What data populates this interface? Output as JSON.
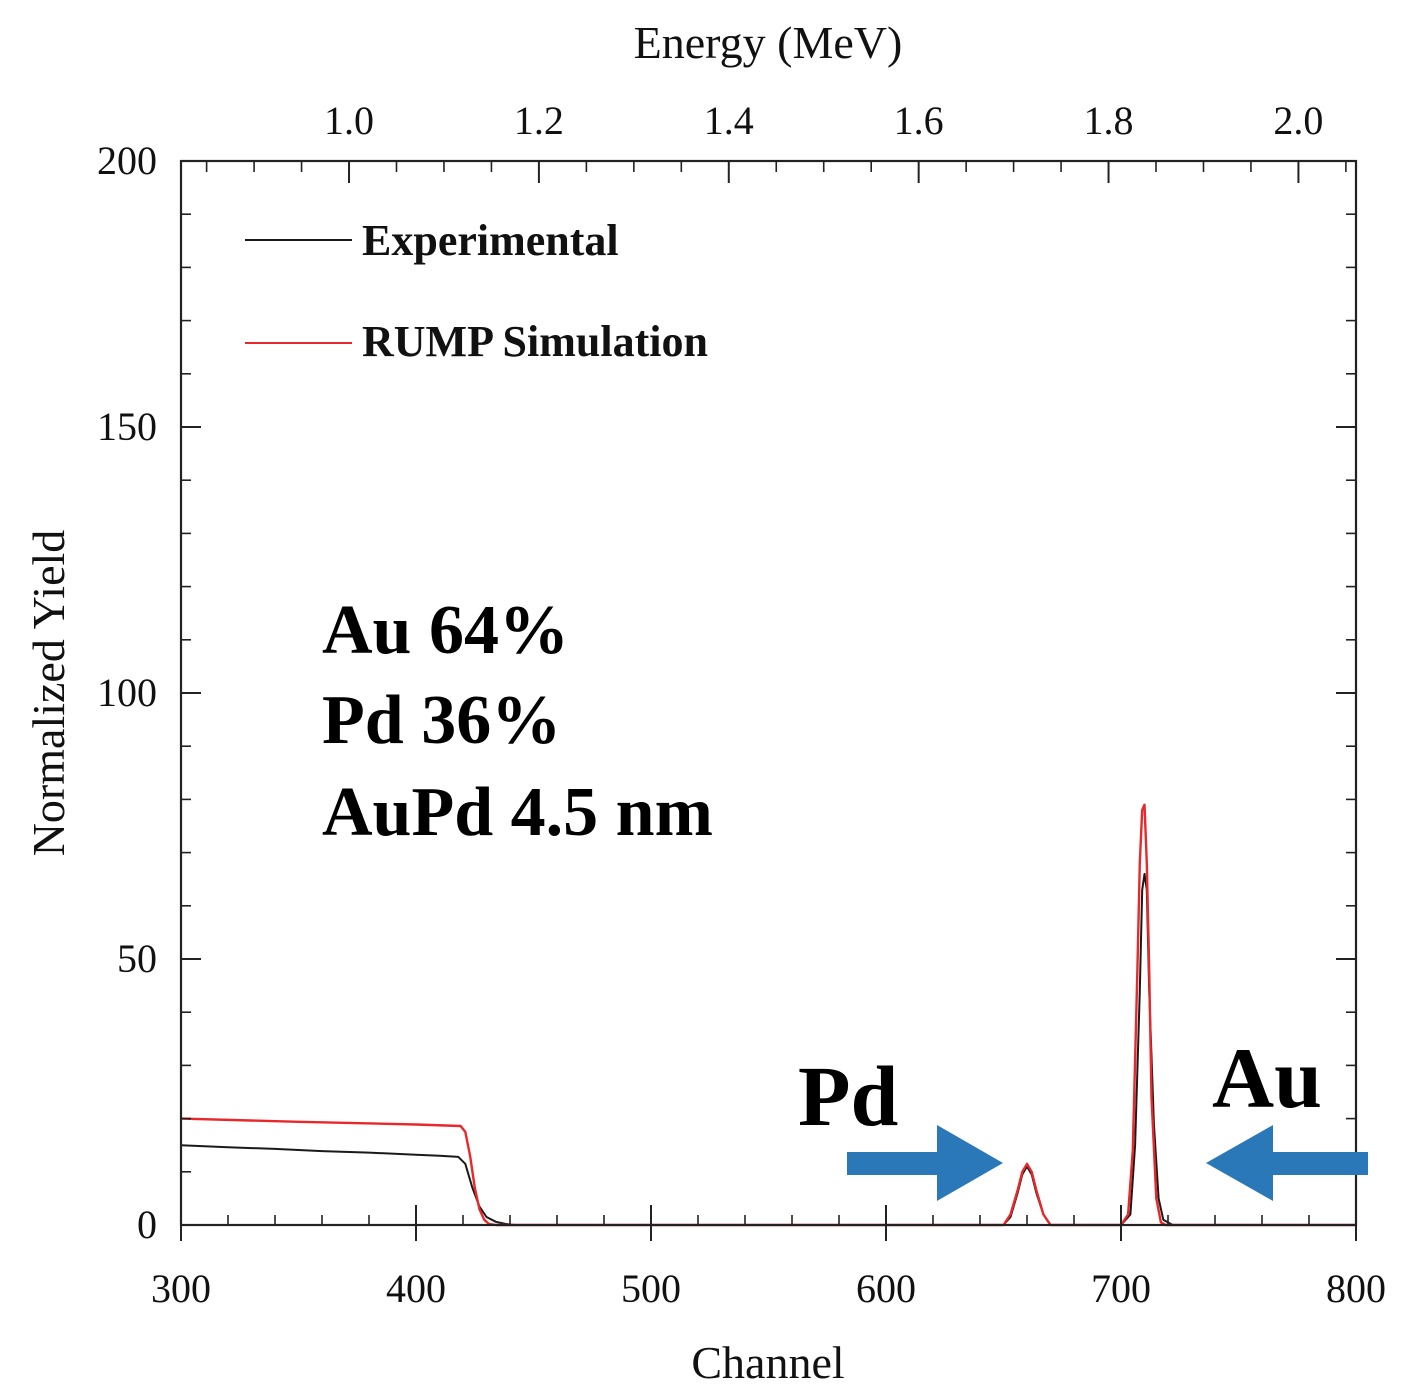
{
  "chart_data": {
    "type": "line",
    "title": "",
    "xlabel": "Channel",
    "ylabel": "Normalized Yield",
    "x2label": "Energy (MeV)",
    "xlim": [
      300,
      800
    ],
    "ylim": [
      0,
      200
    ],
    "x_ticks": [
      300,
      400,
      500,
      600,
      700,
      800
    ],
    "x_tick_labels": [
      "300",
      "400",
      "500",
      "600",
      "700",
      "800"
    ],
    "y_ticks": [
      0,
      50,
      100,
      150,
      200
    ],
    "y_tick_labels": [
      "0",
      "50",
      "100",
      "150",
      "200"
    ],
    "x2_ticks": [
      1.0,
      1.2,
      1.4,
      1.6,
      1.8,
      2.0
    ],
    "x2_tick_labels": [
      "1.0",
      "1.2",
      "1.4",
      "1.6",
      "1.8",
      "2.0"
    ],
    "energy_calibration": {
      "channel_at_1_0_MeV": 371.5,
      "channels_per_MeV": 404
    },
    "legend_position": "top-left",
    "series": [
      {
        "name": "Experimental",
        "color": "#1a1a1a",
        "x": [
          300,
          320,
          340,
          360,
          380,
          400,
          410,
          418,
          421,
          424,
          427,
          430,
          434,
          438,
          442,
          445,
          450,
          500,
          600,
          650,
          653,
          656,
          658,
          660,
          662,
          664,
          667,
          670,
          690,
          700,
          704,
          706,
          708,
          709,
          710,
          711,
          712,
          714,
          716,
          718,
          722,
          730,
          800
        ],
        "values": [
          15,
          14.6,
          14.3,
          13.9,
          13.6,
          13.2,
          13,
          12.8,
          11.5,
          7,
          3.5,
          1.5,
          0.6,
          0.2,
          0,
          0,
          0,
          0,
          0,
          0,
          1.5,
          6,
          9.5,
          11,
          9.5,
          6,
          2,
          0,
          0,
          0,
          2,
          15,
          44,
          63,
          66,
          63,
          44,
          19,
          5,
          1,
          0,
          0,
          0
        ]
      },
      {
        "name": "RUMP Simulation",
        "color": "#e8282a",
        "x": [
          300,
          350,
          400,
          419,
          421,
          423,
          425,
          427,
          429,
          431,
          434,
          438,
          500,
          600,
          650,
          653,
          656,
          658,
          660,
          662,
          664,
          667,
          670,
          690,
          700,
          703,
          705,
          707,
          708,
          709,
          710,
          711,
          712,
          713,
          715,
          717,
          719,
          722,
          730,
          800
        ],
        "values": [
          20,
          19.4,
          18.9,
          18.6,
          17.5,
          13,
          7,
          3,
          1,
          0.2,
          0,
          0,
          0,
          0,
          0,
          2,
          6.5,
          10,
          11.5,
          10,
          6.5,
          2,
          0,
          0,
          0,
          2,
          14,
          48,
          68,
          78,
          79,
          68,
          48,
          24,
          5,
          0.5,
          0,
          0,
          0,
          0
        ]
      }
    ],
    "annotations": [
      "Au 64%",
      "Pd 36%",
      "AuPd 4.5 nm"
    ],
    "element_labels": {
      "pd": "Pd",
      "au": "Au"
    },
    "arrow_color": "#2b78b8"
  }
}
